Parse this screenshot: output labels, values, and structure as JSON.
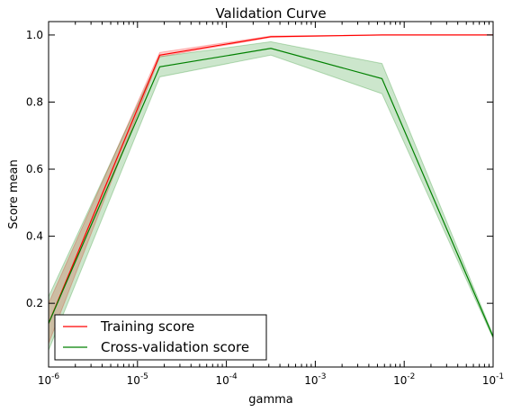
{
  "chart_data": {
    "type": "line",
    "title": "Validation Curve",
    "xlabel": "gamma",
    "ylabel": "Score mean",
    "xscale": "log",
    "xlim": [
      1e-06,
      0.1
    ],
    "ylim": [
      0.01,
      1.04
    ],
    "x_ticks": [
      {
        "value": 1e-06,
        "base": "10",
        "exp": "-6"
      },
      {
        "value": 1e-05,
        "base": "10",
        "exp": "-5"
      },
      {
        "value": 0.0001,
        "base": "10",
        "exp": "-4"
      },
      {
        "value": 0.001,
        "base": "10",
        "exp": "-3"
      },
      {
        "value": 0.01,
        "base": "10",
        "exp": "-2"
      },
      {
        "value": 0.1,
        "base": "10",
        "exp": "-1"
      }
    ],
    "y_ticks": [
      {
        "value": 0.2,
        "label": "0.2"
      },
      {
        "value": 0.4,
        "label": "0.4"
      },
      {
        "value": 0.6,
        "label": "0.6"
      },
      {
        "value": 0.8,
        "label": "0.8"
      },
      {
        "value": 1.0,
        "label": "1.0"
      }
    ],
    "x": [
      1e-06,
      1.778e-05,
      0.0003162,
      0.005623,
      0.1
    ],
    "series": [
      {
        "name": "Training score",
        "color": "#ff0000",
        "values": [
          0.14,
          0.94,
          0.995,
          1.0,
          1.0
        ],
        "band_low": [
          0.08,
          0.935,
          0.993,
          1.0,
          1.0
        ],
        "band_high": [
          0.2,
          0.948,
          0.997,
          1.0,
          1.0
        ]
      },
      {
        "name": "Cross-validation score",
        "color": "#008000",
        "values": [
          0.14,
          0.905,
          0.96,
          0.87,
          0.1
        ],
        "band_low": [
          0.06,
          0.875,
          0.94,
          0.825,
          0.095
        ],
        "band_high": [
          0.22,
          0.935,
          0.98,
          0.915,
          0.105
        ]
      }
    ],
    "legend_position": "lower-left",
    "grid": false
  }
}
